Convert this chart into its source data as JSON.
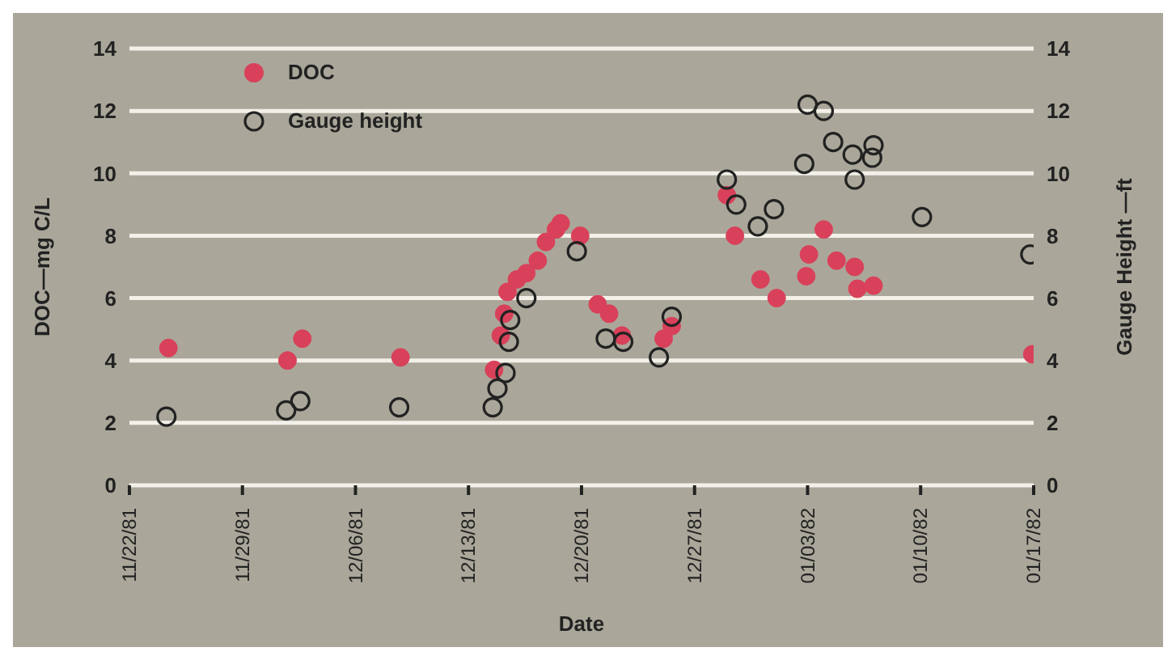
{
  "chart_data": {
    "type": "scatter",
    "xlabel": "Date",
    "ylabel": "DOC—mg C/L",
    "y2label": "Gauge Height —ft",
    "xlim": [
      "1981-11-22",
      "1982-01-17"
    ],
    "xticks": [
      {
        "value": "1981-11-22",
        "label": "11/22/81"
      },
      {
        "value": "1981-11-29",
        "label": "11/29/81"
      },
      {
        "value": "1981-12-06",
        "label": "12/06/81"
      },
      {
        "value": "1981-12-13",
        "label": "12/13/81"
      },
      {
        "value": "1981-12-20",
        "label": "12/20/81"
      },
      {
        "value": "1981-12-27",
        "label": "12/27/81"
      },
      {
        "value": "1982-01-03",
        "label": "01/03/82"
      },
      {
        "value": "1982-01-10",
        "label": "01/10/82"
      },
      {
        "value": "1982-01-17",
        "label": "01/17/82"
      }
    ],
    "ylim": [
      0,
      14
    ],
    "yticks": [
      0,
      2,
      4,
      6,
      8,
      10,
      12,
      14
    ],
    "y2lim": [
      0,
      14
    ],
    "y2ticks": [
      0,
      2,
      4,
      6,
      8,
      10,
      12,
      14
    ],
    "grid": "y",
    "legend": "top left",
    "marker": "circle",
    "series": [
      {
        "name": "DOC",
        "color": "#d9415a",
        "x": [
          "1981-11-24T10:00",
          "1981-12-01T19:00",
          "1981-12-02T17:00",
          "1981-12-08T19:00",
          "1981-12-14T14:00",
          "1981-12-15T00:00",
          "1981-12-15T05:00",
          "1981-12-15T10:00",
          "1981-12-16T00:00",
          "1981-12-16T14:00",
          "1981-12-17T07:00",
          "1981-12-17T19:00",
          "1981-12-18T10:00",
          "1981-12-18T17:00",
          "1981-12-19T22:00",
          "1981-12-21T00:00",
          "1981-12-21T17:00",
          "1981-12-22T12:00",
          "1981-12-25T02:00",
          "1981-12-25T14:00",
          "1981-12-29T00:00",
          "1981-12-29T12:00",
          "1981-12-31T02:00",
          "1982-01-01T02:00",
          "1982-01-02T22:00",
          "1982-01-03T02:00",
          "1982-01-04T00:00",
          "1982-01-04T19:00",
          "1982-01-05T22:00",
          "1982-01-06T02:00",
          "1982-01-07T02:00",
          "1982-01-16T22:00"
        ],
        "values": [
          4.4,
          4.0,
          4.7,
          4.1,
          3.7,
          4.8,
          5.5,
          6.2,
          6.6,
          6.8,
          7.2,
          7.8,
          8.2,
          8.4,
          8.0,
          5.8,
          5.5,
          4.8,
          4.7,
          5.1,
          9.3,
          8.0,
          6.6,
          6.0,
          6.7,
          7.4,
          8.2,
          7.2,
          7.0,
          6.3,
          6.4,
          4.2
        ]
      },
      {
        "name": "Gauge height",
        "color": "#222222",
        "axis": "y2",
        "x": [
          "1981-11-24T07:00",
          "1981-12-01T17:00",
          "1981-12-02T14:00",
          "1981-12-08T17:00",
          "1981-12-14T12:00",
          "1981-12-14T19:00",
          "1981-12-15T07:00",
          "1981-12-15T12:00",
          "1981-12-15T14:00",
          "1981-12-16T14:00",
          "1981-12-19T17:00",
          "1981-12-21T12:00",
          "1981-12-22T14:00",
          "1981-12-24T19:00",
          "1981-12-25T14:00",
          "1981-12-29T00:00",
          "1981-12-29T14:00",
          "1981-12-30T22:00",
          "1981-12-31T22:00",
          "1982-01-02T19:00",
          "1982-01-03T00:00",
          "1982-01-04T00:00",
          "1982-01-04T14:00",
          "1982-01-05T19:00",
          "1982-01-05T22:00",
          "1982-01-07T02:00",
          "1982-01-07T00:00",
          "1982-01-10T02:00",
          "1982-01-16T19:00"
        ],
        "values": [
          2.2,
          2.4,
          2.7,
          2.5,
          2.5,
          3.1,
          3.6,
          4.6,
          5.3,
          6.0,
          7.5,
          4.7,
          4.6,
          4.1,
          5.4,
          9.8,
          9.0,
          8.3,
          8.85,
          10.3,
          12.2,
          12.0,
          11.0,
          10.6,
          9.8,
          10.9,
          10.5,
          8.6,
          7.4
        ]
      }
    ]
  }
}
